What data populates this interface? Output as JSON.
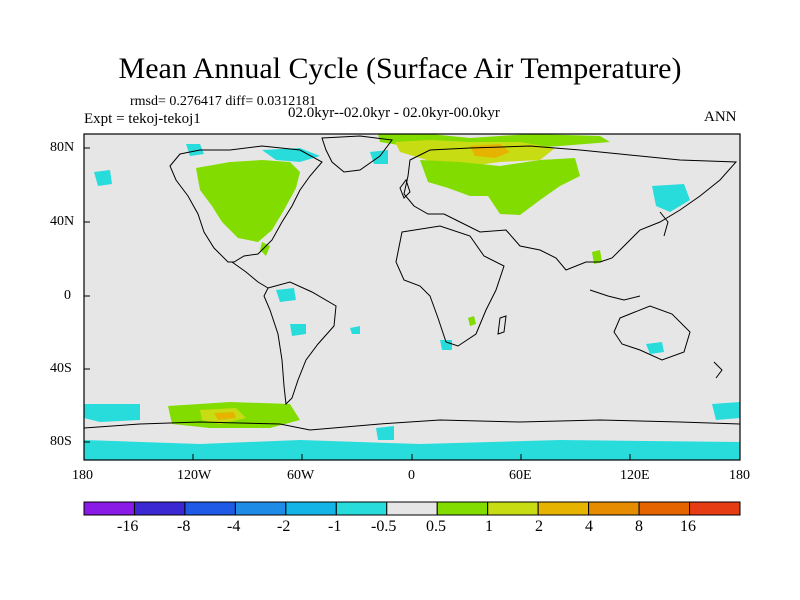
{
  "title": "Mean Annual Cycle (Surface Air Temperature)",
  "stats_line": "rmsd= 0.276417 diff= 0.0312181",
  "expt_line": "Expt = tekoj-tekoj1",
  "period_line": "02.0kyr--02.0kyr - 02.0kyr-00.0kyr",
  "season": "ANN",
  "lat_labels": [
    "80N",
    "40N",
    "0",
    "40S",
    "80S"
  ],
  "lon_labels": [
    "180",
    "120W",
    "60W",
    "0",
    "60E",
    "120E",
    "180"
  ],
  "colorbar": {
    "colors": [
      "#8a1ae6",
      "#3c28d2",
      "#1e5ae6",
      "#1e8ce6",
      "#14b4e6",
      "#28dcdc",
      "#e6e6e6",
      "#82dc00",
      "#c8dc14",
      "#e6b400",
      "#e68c00",
      "#e66400",
      "#e63c14"
    ],
    "labels": [
      "-16",
      "-8",
      "-4",
      "-2",
      "-1",
      "-0.5",
      "0.5",
      "1",
      "2",
      "4",
      "8",
      "16"
    ]
  },
  "colors": {
    "ocean_neutral": "#e6e6e6",
    "coast": "#000000",
    "warm_green": "#82dc00",
    "warm_yellow": "#c8dc14",
    "warm_orange": "#e6b400",
    "cool_cyan": "#28dcdc"
  }
}
